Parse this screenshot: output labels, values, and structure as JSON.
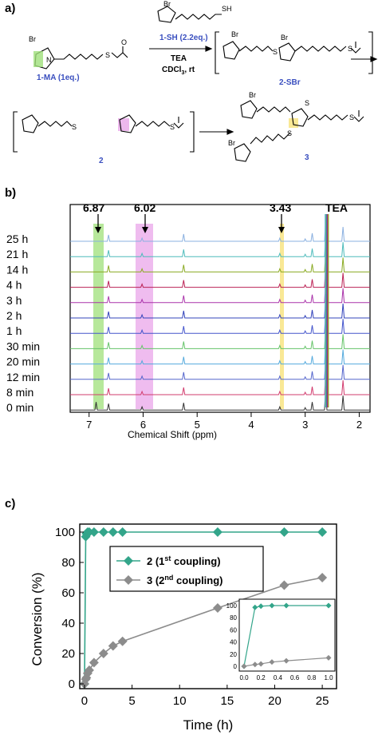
{
  "panels": {
    "a": "a)",
    "b": "b)",
    "c": "c)"
  },
  "scheme": {
    "br": "Br",
    "o": "O",
    "n": "N",
    "s": "S",
    "sh": "SH",
    "ma_label": "1-MA (1eq.)",
    "reagent_label": "1-SH (2.2eq.)",
    "cond1": "TEA",
    "cond2": "CDCl",
    "cond2_sub": "3",
    "cond2_tail": ", rt",
    "sbr_label": "2-SBr",
    "int2_label": "2",
    "prod3_label": "3",
    "label_color": "#3a4fbf",
    "green_highlight": "#9fe07a",
    "pink_highlight": "#e9a6e9",
    "yellow_highlight": "#f7e27a"
  },
  "nmr": {
    "xlabel": "Chemical Shift (ppm)",
    "x_ticks": [
      "7",
      "6",
      "5",
      "4",
      "3",
      "2"
    ],
    "peak_labels": [
      "6.87",
      "6.02",
      "3.43",
      "TEA"
    ],
    "time_labels": [
      "25 h",
      "21 h",
      "14 h",
      "4 h",
      "3 h",
      "2 h",
      "1 h",
      "30 min",
      "20 min",
      "12 min",
      "8 min",
      "0 min"
    ],
    "trace_colors": [
      "#8ab0e0",
      "#4fbcbc",
      "#8aaa22",
      "#bb2255",
      "#aa33aa",
      "#3344bb",
      "#4455cc",
      "#66c46a",
      "#55aadd",
      "#5566cc",
      "#d23c6e",
      "#333333"
    ]
  },
  "chart_data": {
    "type": "scatter",
    "xlabel": "Time (h)",
    "ylabel": "Conversion (%)",
    "xlim": [
      0,
      26
    ],
    "ylim": [
      0,
      100
    ],
    "x_ticks": [
      "0",
      "5",
      "10",
      "15",
      "20",
      "25"
    ],
    "y_ticks": [
      "0",
      "20",
      "40",
      "60",
      "80",
      "100"
    ],
    "legend_position": "upper-center",
    "series": [
      {
        "name": "2",
        "note_main": "(1",
        "note_sup": "st",
        "note_tail": " coupling)",
        "color": "#33a58a",
        "x": [
          0,
          0.13,
          0.2,
          0.33,
          0.5,
          1,
          2,
          3,
          4,
          14,
          21,
          25
        ],
        "y": [
          0,
          97,
          99,
          100,
          100,
          100,
          100,
          100,
          100,
          100,
          100,
          100
        ]
      },
      {
        "name": "3",
        "note_main": "(2",
        "note_sup": "nd",
        "note_tail": " coupling)",
        "color": "#8c8c8c",
        "x": [
          0,
          0.13,
          0.2,
          0.33,
          0.5,
          1,
          2,
          3,
          4,
          14,
          21,
          25
        ],
        "y": [
          0,
          3,
          4,
          7,
          9,
          14,
          20,
          25,
          28,
          50,
          65,
          70
        ]
      }
    ],
    "inset": {
      "xlim": [
        0,
        1
      ],
      "ylim": [
        0,
        100
      ],
      "x_ticks": [
        "0.0",
        "0.2",
        "0.4",
        "0.6",
        "0.8",
        "1.0"
      ],
      "y_ticks": [
        "0",
        "20",
        "40",
        "60",
        "80",
        "100"
      ]
    }
  }
}
